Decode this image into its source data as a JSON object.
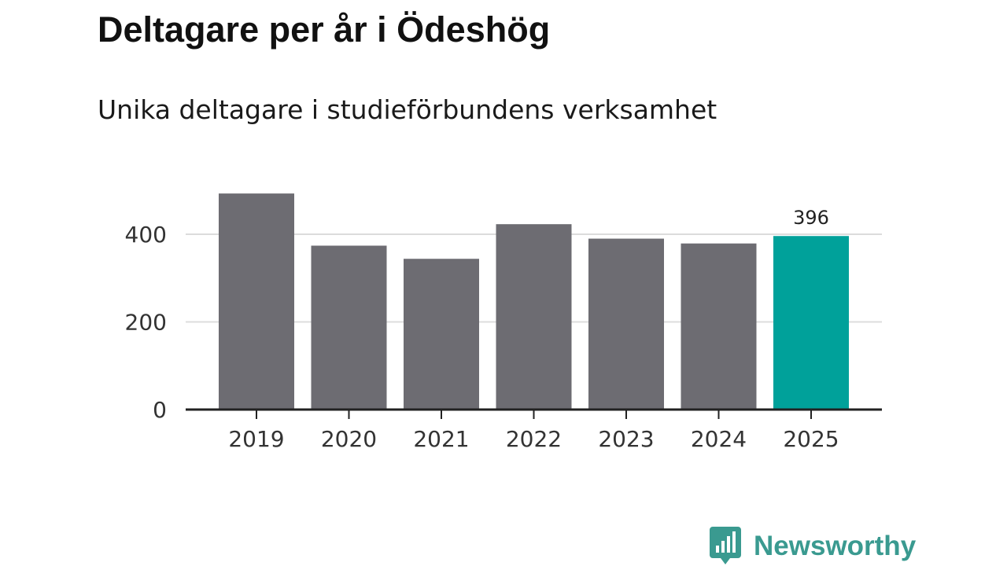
{
  "title": "Deltagare per år i Ödeshög",
  "subtitle": "Unika deltagare i studieförbundens verksamhet",
  "brand": {
    "name": "Newsworthy",
    "icon": "bar-chart-speech-bubble-icon",
    "color": "#3a9a90"
  },
  "colors": {
    "bar": "#6d6c72",
    "highlight": "#00a19a",
    "grid": "#dcdcdc",
    "axis": "#222222"
  },
  "chart_data": {
    "type": "bar",
    "title": "Deltagare per år i Ödeshög",
    "subtitle": "Unika deltagare i studieförbundens verksamhet",
    "categories": [
      "2019",
      "2020",
      "2021",
      "2022",
      "2023",
      "2024",
      "2025"
    ],
    "values": [
      493,
      374,
      344,
      423,
      390,
      379,
      396
    ],
    "highlight_index": 6,
    "data_labels": [
      {
        "index": 6,
        "text": "396"
      }
    ],
    "ylim": [
      0,
      500
    ],
    "yticks": [
      0,
      200,
      400
    ],
    "xlabel": "",
    "ylabel": "",
    "grid": true,
    "legend": "none"
  }
}
